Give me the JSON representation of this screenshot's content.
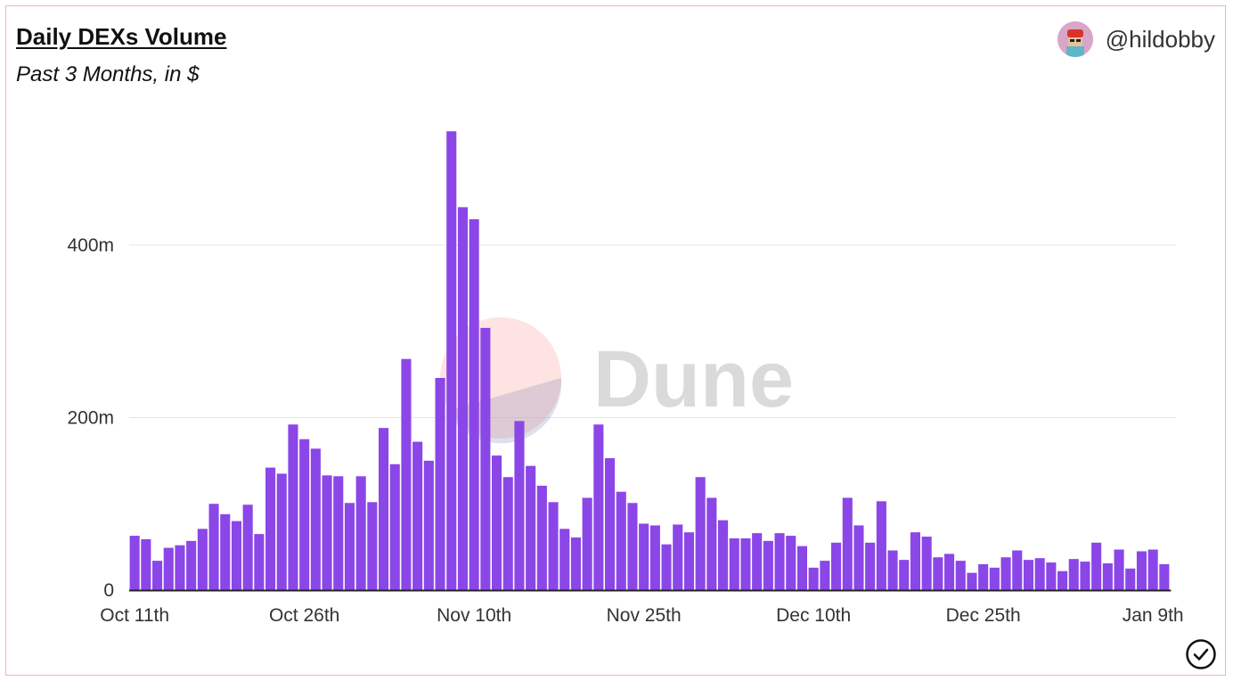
{
  "header": {
    "title": "Daily DEXs Volume",
    "subtitle": "Past 3 Months, in $",
    "author": "@hildobby"
  },
  "watermark": "Dune",
  "colors": {
    "bar": "#8b46e8",
    "grid": "#e6e6e6",
    "axis": "#222222",
    "frame": "#f1b5b5"
  },
  "icons": {
    "avatar": "avatar-icon",
    "verified": "check-circle-icon"
  },
  "chart_data": {
    "type": "bar",
    "x_tick_labels": [
      "Oct 11th",
      "Oct 26th",
      "Nov 10th",
      "Nov 25th",
      "Dec 10th",
      "Dec 25th",
      "Jan 9th"
    ],
    "x_tick_index": [
      0,
      15,
      30,
      45,
      60,
      75,
      90
    ],
    "y_tick_labels": [
      "0",
      "200m",
      "400m"
    ],
    "y_tick_values": [
      0,
      200,
      400
    ],
    "ylim": [
      0,
      540
    ],
    "grid": true,
    "unit": "m",
    "values": [
      63,
      59,
      34,
      49,
      52,
      57,
      71,
      100,
      88,
      80,
      99,
      65,
      142,
      135,
      192,
      175,
      164,
      133,
      132,
      101,
      132,
      102,
      188,
      146,
      268,
      172,
      150,
      246,
      532,
      444,
      430,
      304,
      156,
      131,
      196,
      144,
      121,
      102,
      71,
      61,
      107,
      192,
      153,
      114,
      101,
      77,
      75,
      53,
      76,
      67,
      131,
      107,
      81,
      60,
      60,
      66,
      57,
      66,
      63,
      51,
      26,
      34,
      55,
      107,
      75,
      55,
      103,
      46,
      35,
      67,
      62,
      38,
      42,
      34,
      20,
      30,
      26,
      38,
      46,
      35,
      37,
      32,
      22,
      36,
      33,
      55,
      31,
      47,
      25,
      45,
      47,
      30
    ]
  }
}
